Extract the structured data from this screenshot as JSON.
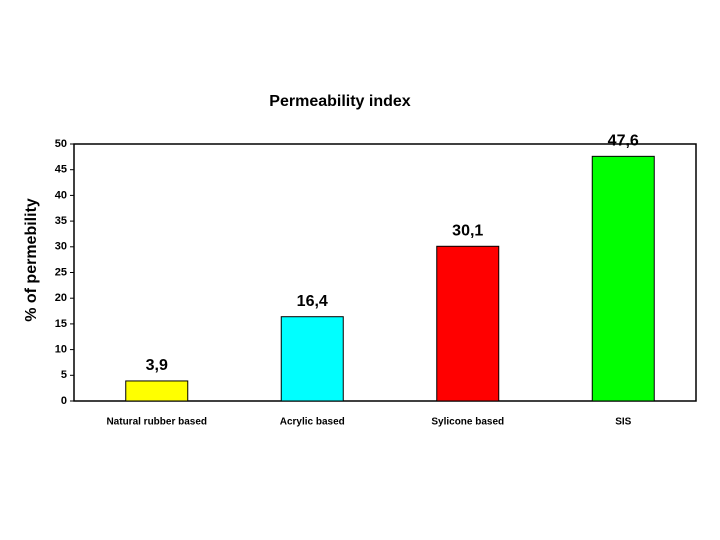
{
  "chart_data": {
    "type": "bar",
    "title": "Permeability index",
    "y_label": "% of permebility",
    "categories": [
      "Natural rubber based",
      "Acrylic based",
      "Sylicone based",
      "SIS"
    ],
    "values": [
      3.9,
      16.4,
      30.1,
      47.6
    ],
    "value_labels": [
      "3,9",
      "16,4",
      "30,1",
      "47,6"
    ],
    "colors": [
      "#ffff00",
      "#00ffff",
      "#ff0000",
      "#00ff00"
    ],
    "ylim": [
      0,
      50
    ],
    "yticks": [
      0,
      5,
      10,
      15,
      20,
      25,
      30,
      35,
      40,
      45,
      50
    ]
  }
}
